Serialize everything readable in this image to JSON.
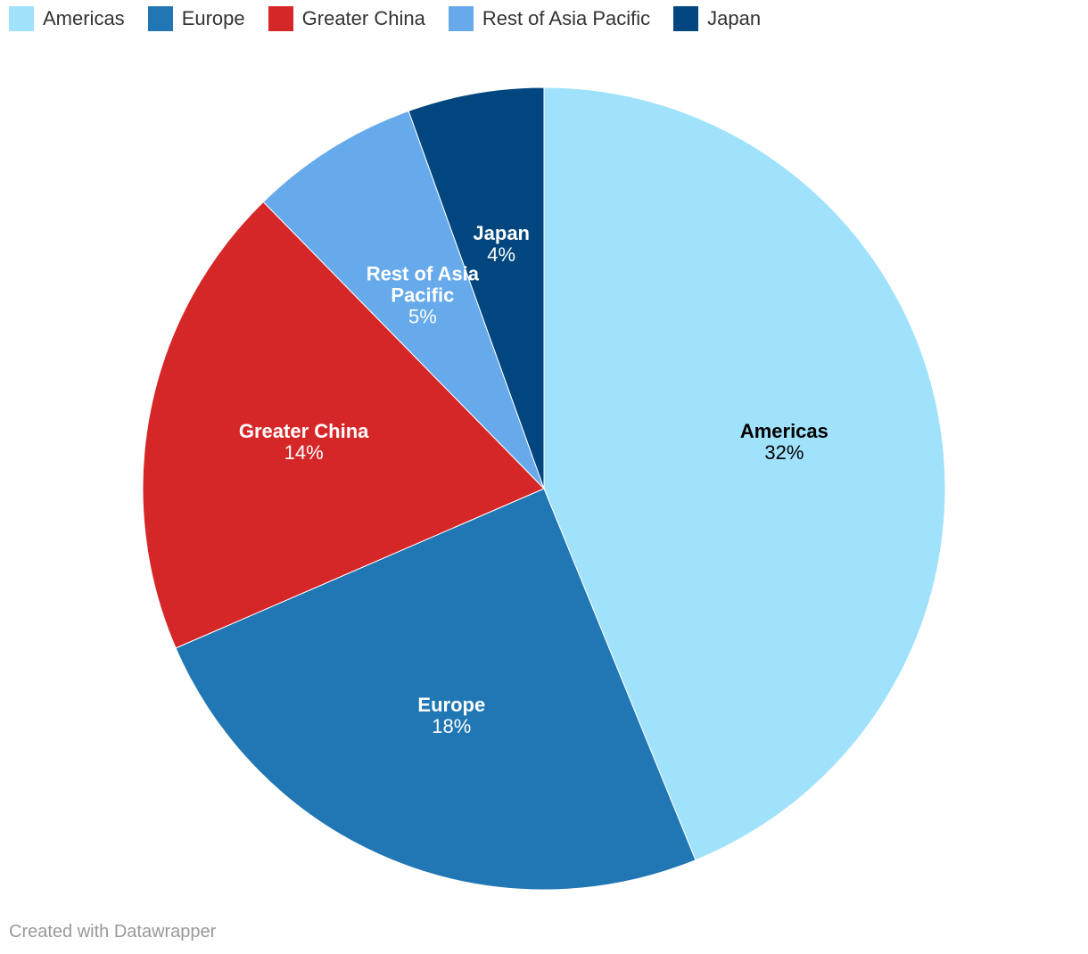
{
  "chart_data": {
    "type": "pie",
    "legend_position": "top-left",
    "slices": [
      {
        "label": "Americas",
        "value": 32,
        "value_label": "32%",
        "color": "#a0e2fc",
        "text_color": "#000000"
      },
      {
        "label": "Europe",
        "value": 18,
        "value_label": "18%",
        "color": "#2077b4",
        "text_color": "#ffffff"
      },
      {
        "label": "Greater China",
        "value": 14,
        "value_label": "14%",
        "color": "#d62728",
        "text_color": "#ffffff"
      },
      {
        "label": "Rest of Asia Pacific",
        "value": 5,
        "value_label": "5%",
        "color": "#66aaeb",
        "text_color": "#ffffff"
      },
      {
        "label": "Japan",
        "value": 4,
        "value_label": "4%",
        "color": "#01467f",
        "text_color": "#ffffff"
      }
    ]
  },
  "footer": {
    "credit": "Created with Datawrapper"
  }
}
